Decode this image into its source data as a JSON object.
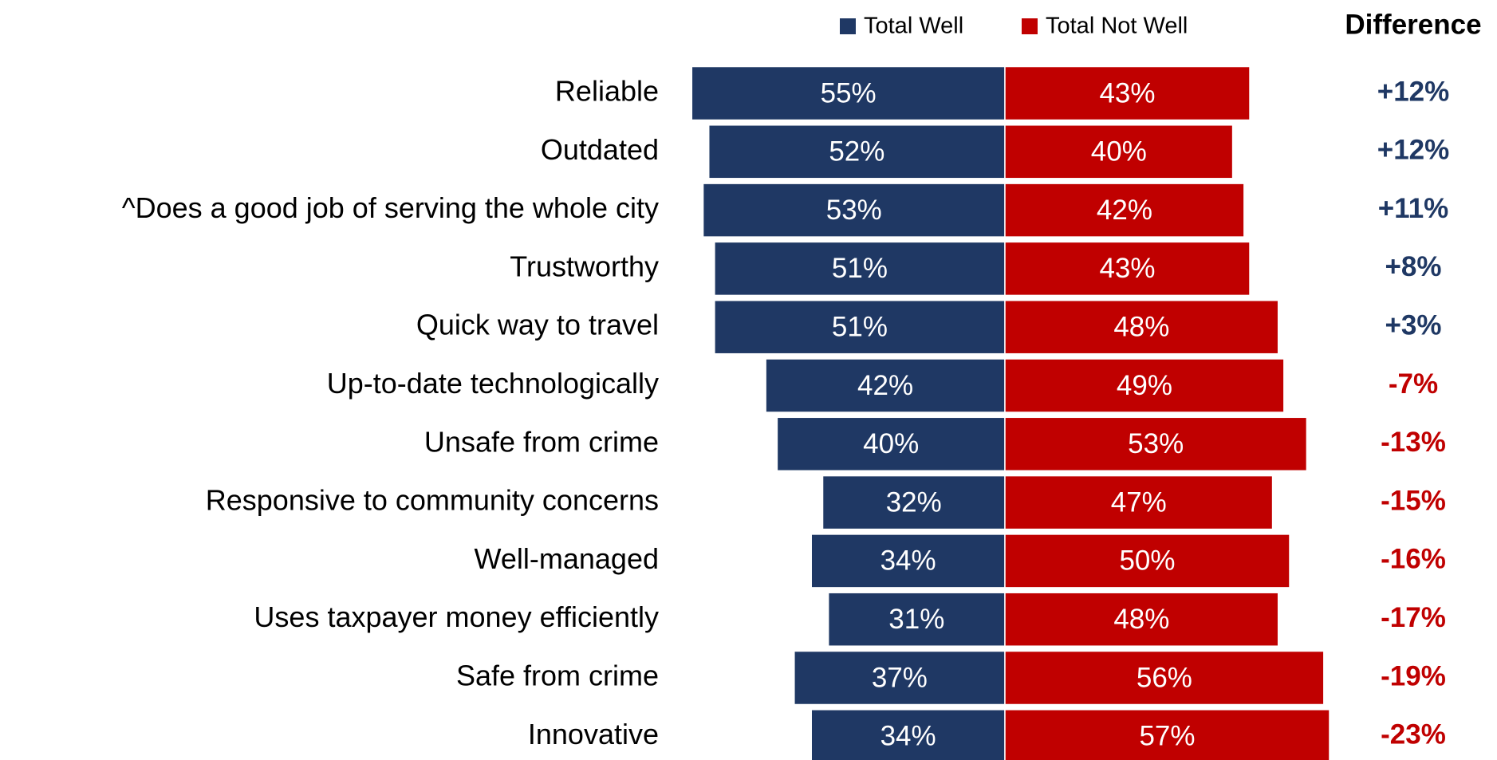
{
  "chart_data": {
    "type": "diverging-bar",
    "categories": [
      "Reliable",
      "Outdated",
      "^Does a good job of serving the whole city",
      "Trustworthy",
      "Quick way to travel",
      "Up-to-date technologically",
      "Unsafe from crime",
      "Responsive to community concerns",
      "Well-managed",
      "Uses taxpayer money efficiently",
      "Safe from crime",
      "Innovative"
    ],
    "series": [
      {
        "name": "Total Well",
        "color": "#1f3864",
        "values": [
          55,
          52,
          53,
          51,
          51,
          42,
          40,
          32,
          34,
          31,
          37,
          34
        ],
        "value_labels": [
          "55%",
          "52%",
          "53%",
          "51%",
          "51%",
          "42%",
          "40%",
          "32%",
          "34%",
          "31%",
          "37%",
          "34%"
        ]
      },
      {
        "name": "Total Not Well",
        "color": "#c00000",
        "values": [
          43,
          40,
          42,
          43,
          48,
          49,
          53,
          47,
          50,
          48,
          56,
          57
        ],
        "value_labels": [
          "43%",
          "40%",
          "42%",
          "43%",
          "48%",
          "49%",
          "53%",
          "47%",
          "50%",
          "48%",
          "56%",
          "57%"
        ]
      }
    ],
    "difference": {
      "title": "Difference",
      "values": [
        12,
        12,
        11,
        8,
        3,
        -7,
        -13,
        -15,
        -16,
        -17,
        -19,
        -23
      ],
      "value_labels": [
        "+12%",
        "+12%",
        "+11%",
        "+8%",
        "+3%",
        "-7%",
        "-13%",
        "-15%",
        "-16%",
        "-17%",
        "-19%",
        "-23%"
      ]
    },
    "legend": "top"
  }
}
